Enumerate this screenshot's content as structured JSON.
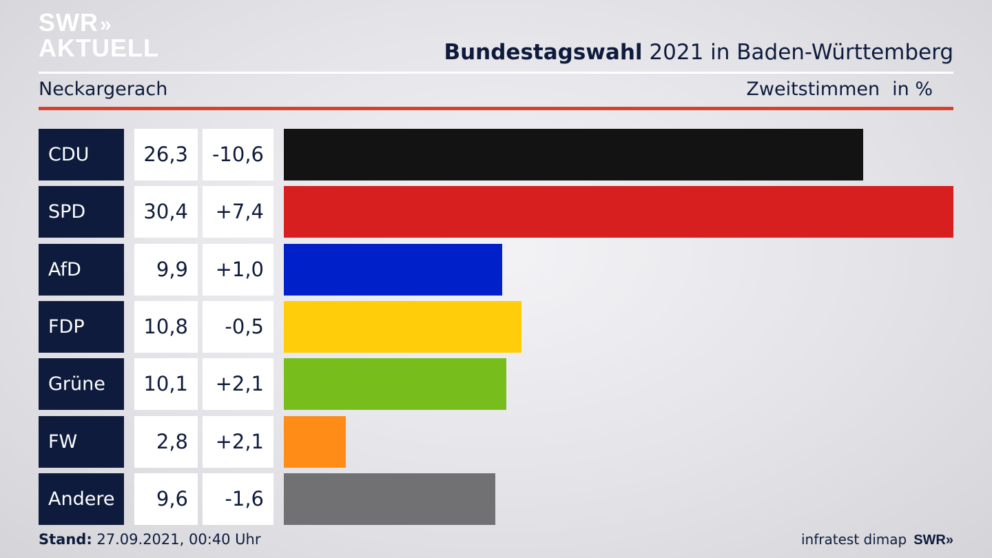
{
  "logo": {
    "line1": "SWR",
    "chevrons": "»",
    "line2": "AKTUELL"
  },
  "header": {
    "title_bold": "Bundestagswahl",
    "title_rest": " 2021 in Baden-Württemberg",
    "place": "Neckargerach",
    "measure": "Zweitstimmen",
    "unit": "in %"
  },
  "colors": {
    "accent_line": "#d9412f",
    "label_bg": "#0e1b3c"
  },
  "chart_data": {
    "type": "bar",
    "orientation": "horizontal",
    "categories": [
      "CDU",
      "SPD",
      "AfD",
      "FDP",
      "Grüne",
      "FW",
      "Andere"
    ],
    "values": [
      26.3,
      30.4,
      9.9,
      10.8,
      10.1,
      2.8,
      9.6
    ],
    "value_labels": [
      "26,3",
      "30,4",
      "9,9",
      "10,8",
      "10,1",
      "2,8",
      "9,6"
    ],
    "changes": [
      "-10,6",
      "+7,4",
      "+1,0",
      "-0,5",
      "+2,1",
      "+2,1",
      "-1,6"
    ],
    "bar_colors": [
      "#131313",
      "#d71f20",
      "#0021c9",
      "#ffcd0a",
      "#77be1c",
      "#ff8c17",
      "#717174"
    ],
    "xlim": [
      0,
      30.4
    ]
  },
  "footer": {
    "stand_label": "Stand:",
    "stand_value": " 27.09.2021, 00:40 Uhr",
    "source": "infratest dimap",
    "brand": "SWR»"
  }
}
